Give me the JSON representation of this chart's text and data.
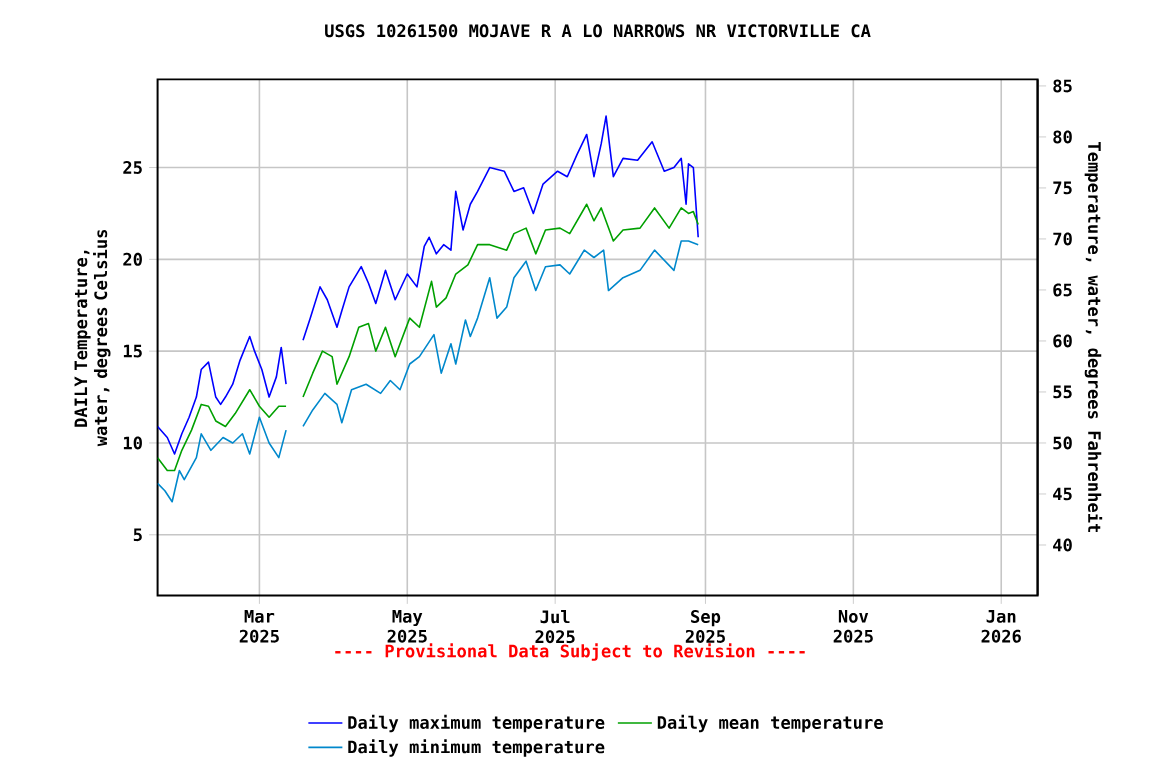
{
  "chart_data": {
    "type": "line",
    "title": "USGS 10261500 MOJAVE R A LO NARROWS NR VICTORVILLE CA",
    "ylabel": "DAILY Temperature, water, degrees Celsius",
    "y2label": "Temperature, water, degrees Fahrenheit",
    "annotations": [
      "---- Provisional Data Subject to Revision ----"
    ],
    "xlim": [
      "2025-01-18",
      "2026-01-16"
    ],
    "xticks": [
      {
        "value": "2025-03-01",
        "label": "Mar 2025"
      },
      {
        "value": "2025-05-01",
        "label": "May 2025"
      },
      {
        "value": "2025-07-01",
        "label": "Jul 2025"
      },
      {
        "value": "2025-09-01",
        "label": "Sep 2025"
      },
      {
        "value": "2025-11-01",
        "label": "Nov 2025"
      },
      {
        "value": "2026-01-01",
        "label": "Jan 2026"
      }
    ],
    "ylim": [
      1.7,
      29.8
    ],
    "yticks": [
      5,
      10,
      15,
      20,
      25
    ],
    "y2lim": [
      35.06,
      85.64
    ],
    "y2ticks": [
      40,
      45,
      50,
      55,
      60,
      65,
      70,
      75,
      80,
      85
    ],
    "grid": true,
    "legend": "bottom",
    "marker": "none",
    "line_style": "solid",
    "series": [
      {
        "name": "Daily maximum temperature",
        "color": "#0000ff",
        "x": [
          "2025-01-18",
          "2025-01-22",
          "2025-01-25",
          "2025-01-28",
          "2025-01-31",
          "2025-02-03",
          "2025-02-05",
          "2025-02-08",
          "2025-02-11",
          "2025-02-13",
          "2025-02-15",
          "2025-02-18",
          "2025-02-21",
          "2025-02-25",
          "2025-02-27",
          "2025-03-02",
          "2025-03-05",
          "2025-03-08",
          "2025-03-10",
          "2025-03-12",
          "2025-03-15",
          "2025-03-19",
          "2025-03-22",
          "2025-03-26",
          "2025-03-29",
          "2025-04-02",
          "2025-04-04",
          "2025-04-07",
          "2025-04-12",
          "2025-04-15",
          "2025-04-18",
          "2025-04-22",
          "2025-04-26",
          "2025-05-01",
          "2025-05-05",
          "2025-05-08",
          "2025-05-10",
          "2025-05-13",
          "2025-05-16",
          "2025-05-19",
          "2025-05-21",
          "2025-05-24",
          "2025-05-27",
          "2025-05-30",
          "2025-06-04",
          "2025-06-10",
          "2025-06-14",
          "2025-06-18",
          "2025-06-22",
          "2025-06-26",
          "2025-07-02",
          "2025-07-06",
          "2025-07-10",
          "2025-07-14",
          "2025-07-17",
          "2025-07-20",
          "2025-07-22",
          "2025-07-25",
          "2025-07-29",
          "2025-08-04",
          "2025-08-10",
          "2025-08-15",
          "2025-08-19",
          "2025-08-22",
          "2025-08-24",
          "2025-08-25",
          "2025-08-27",
          "2025-08-29"
        ],
        "values": [
          10.9,
          10.3,
          9.4,
          10.5,
          11.4,
          12.5,
          14.0,
          14.4,
          12.5,
          12.1,
          12.5,
          13.2,
          14.5,
          15.8,
          15.0,
          14.0,
          12.5,
          13.6,
          15.2,
          13.2,
          null,
          15.6,
          16.8,
          18.5,
          17.8,
          16.3,
          17.2,
          18.5,
          19.6,
          18.7,
          17.6,
          19.4,
          17.8,
          19.2,
          18.5,
          20.7,
          21.2,
          20.3,
          20.8,
          20.5,
          23.7,
          21.6,
          23.0,
          23.7,
          25.0,
          24.8,
          23.7,
          23.9,
          22.5,
          24.1,
          24.8,
          24.5,
          25.7,
          26.8,
          24.5,
          26.3,
          27.8,
          24.5,
          25.5,
          25.4,
          26.4,
          24.8,
          25.0,
          25.5,
          23.0,
          25.2,
          25.0,
          21.2
        ]
      },
      {
        "name": "Daily mean temperature",
        "color": "#00a000",
        "x": [
          "2025-01-18",
          "2025-01-22",
          "2025-01-25",
          "2025-01-28",
          "2025-02-01",
          "2025-02-05",
          "2025-02-08",
          "2025-02-11",
          "2025-02-15",
          "2025-02-19",
          "2025-02-25",
          "2025-03-01",
          "2025-03-05",
          "2025-03-09",
          "2025-03-12",
          "2025-03-15",
          "2025-03-19",
          "2025-03-23",
          "2025-03-27",
          "2025-03-31",
          "2025-04-02",
          "2025-04-07",
          "2025-04-11",
          "2025-04-15",
          "2025-04-18",
          "2025-04-22",
          "2025-04-26",
          "2025-05-02",
          "2025-05-06",
          "2025-05-11",
          "2025-05-13",
          "2025-05-17",
          "2025-05-21",
          "2025-05-26",
          "2025-05-30",
          "2025-06-04",
          "2025-06-11",
          "2025-06-14",
          "2025-06-19",
          "2025-06-23",
          "2025-06-27",
          "2025-07-03",
          "2025-07-07",
          "2025-07-14",
          "2025-07-17",
          "2025-07-20",
          "2025-07-25",
          "2025-07-29",
          "2025-08-05",
          "2025-08-11",
          "2025-08-17",
          "2025-08-22",
          "2025-08-25",
          "2025-08-27",
          "2025-08-29"
        ],
        "values": [
          9.2,
          8.5,
          8.5,
          9.6,
          10.7,
          12.1,
          12.0,
          11.2,
          10.9,
          11.6,
          12.9,
          12.0,
          11.4,
          12.0,
          12.0,
          null,
          12.5,
          13.8,
          15.0,
          14.7,
          13.2,
          14.7,
          16.3,
          16.5,
          15.0,
          16.3,
          14.7,
          16.8,
          16.3,
          18.8,
          17.4,
          17.9,
          19.2,
          19.7,
          20.8,
          20.8,
          20.5,
          21.4,
          21.7,
          20.3,
          21.6,
          21.7,
          21.4,
          23.0,
          22.1,
          22.8,
          21.0,
          21.6,
          21.7,
          22.8,
          21.7,
          22.8,
          22.5,
          22.6,
          21.9
        ]
      },
      {
        "name": "Daily minimum temperature",
        "color": "#0088cc",
        "x": [
          "2025-01-18",
          "2025-01-21",
          "2025-01-24",
          "2025-01-27",
          "2025-01-29",
          "2025-02-03",
          "2025-02-05",
          "2025-02-09",
          "2025-02-14",
          "2025-02-18",
          "2025-02-22",
          "2025-02-25",
          "2025-03-01",
          "2025-03-05",
          "2025-03-09",
          "2025-03-12",
          "2025-03-15",
          "2025-03-19",
          "2025-03-23",
          "2025-03-28",
          "2025-04-02",
          "2025-04-04",
          "2025-04-08",
          "2025-04-14",
          "2025-04-20",
          "2025-04-24",
          "2025-04-28",
          "2025-05-02",
          "2025-05-06",
          "2025-05-12",
          "2025-05-15",
          "2025-05-19",
          "2025-05-21",
          "2025-05-25",
          "2025-05-27",
          "2025-05-30",
          "2025-06-04",
          "2025-06-07",
          "2025-06-11",
          "2025-06-14",
          "2025-06-19",
          "2025-06-23",
          "2025-06-27",
          "2025-07-03",
          "2025-07-07",
          "2025-07-13",
          "2025-07-17",
          "2025-07-21",
          "2025-07-23",
          "2025-07-29",
          "2025-08-05",
          "2025-08-11",
          "2025-08-19",
          "2025-08-22",
          "2025-08-25",
          "2025-08-29"
        ],
        "values": [
          7.8,
          7.4,
          6.8,
          8.5,
          8.0,
          9.2,
          10.5,
          9.6,
          10.3,
          10.0,
          10.5,
          9.4,
          11.4,
          10.0,
          9.2,
          10.7,
          null,
          10.9,
          11.8,
          12.7,
          12.1,
          11.1,
          12.9,
          13.2,
          12.7,
          13.4,
          12.9,
          14.3,
          14.7,
          15.9,
          13.8,
          15.4,
          14.3,
          16.7,
          15.8,
          16.8,
          19.0,
          16.8,
          17.4,
          19.0,
          19.9,
          18.3,
          19.6,
          19.7,
          19.2,
          20.5,
          20.1,
          20.5,
          18.3,
          19.0,
          19.4,
          20.5,
          19.4,
          21.0,
          21.0,
          20.8
        ]
      }
    ]
  }
}
